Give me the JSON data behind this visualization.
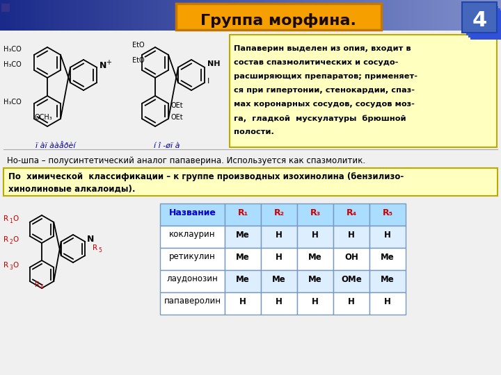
{
  "title": "Группа морфина.",
  "slide_number": "4",
  "bg_color": "#dcdce8",
  "header_gradient_left": "#1a2a8a",
  "header_gradient_right": "#8090cc",
  "title_box_color": "#f5a000",
  "title_border_color": "#c07800",
  "title_text_color": "#1a0a00",
  "papaverin_text_lines": [
    "Папаверин выделен из опия, входит в",
    "состав спазмолитических и сосудо-",
    "расширяющих препаратов; применяет-",
    "ся при гипертонии, стенокардии, спаз-",
    "мах коронарных сосудов, сосудов моз-",
    "га,  гладкой  мускулатуры  брюшной",
    "полости."
  ],
  "papaverin_box_bg": "#ffffc0",
  "papaverin_box_gradient": "#ffd700",
  "noshpa_text": "Но-шпа – полусинтетический аналог папаверина. Используется как спазмолитик.",
  "classification_text_lines": [
    "По  химической  классификации – к группе производных изохинолина (бензилизо-",
    "хинолиновые алкалоиды)."
  ],
  "classification_box_bg": "#ffffc0",
  "struct_label_color": "#0000aa",
  "label1": "ï àï ààåðèí",
  "label2": "í î -øï à",
  "table_header_bg": "#aaddff",
  "table_header_name_color": "#0000cc",
  "table_header_r_color": "#cc0000",
  "table_alt_bg": "#ddeeff",
  "table_white_bg": "#ffffff",
  "table_border": "#7799bb",
  "table_data": [
    [
      "Название",
      "R₁",
      "R₂",
      "R₃",
      "R₄",
      "R₅"
    ],
    [
      "коклаурин",
      "Me",
      "H",
      "H",
      "H",
      "H"
    ],
    [
      "ретикулин",
      "Me",
      "H",
      "Me",
      "OH",
      "Me"
    ],
    [
      "лаудонозин",
      "Me",
      "Me",
      "Me",
      "OMe",
      "Me"
    ],
    [
      "папаверолин",
      "H",
      "H",
      "H",
      "H",
      "H"
    ]
  ],
  "slide_num_bg": "#4466bb",
  "white": "#ffffff",
  "black": "#000000",
  "red_label": "#cc0000"
}
